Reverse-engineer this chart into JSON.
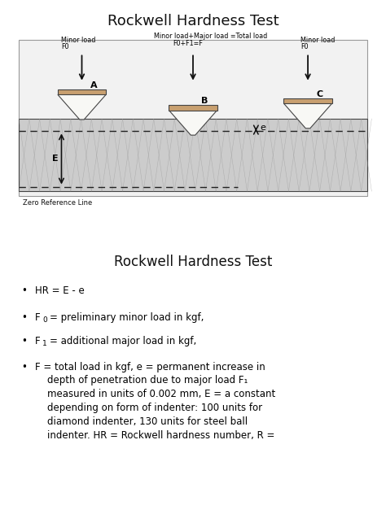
{
  "title_top": "Rockwell Hardness Test",
  "title_bottom": "Rockwell Hardness Test",
  "indenter_fill": "#c8a070",
  "indenter_edge": "#444444",
  "fig_bg": "#ffffff",
  "diagram_bg": "#f2f2f2",
  "material_color": "#cccccc",
  "hatch_color": "#999999",
  "arrow_color": "#111111",
  "dashed_color": "#222222",
  "label_A": "A",
  "label_B": "B",
  "label_C": "C",
  "label_E": "E",
  "label_e": "e",
  "label_left_1": "Minor load",
  "label_left_2": "F0",
  "label_center_1": "Minor load+Major load =Total load",
  "label_center_2": "F0+F1=F",
  "label_right_1": "Minor load",
  "label_right_2": "F0",
  "zero_ref": "Zero Reference Line"
}
